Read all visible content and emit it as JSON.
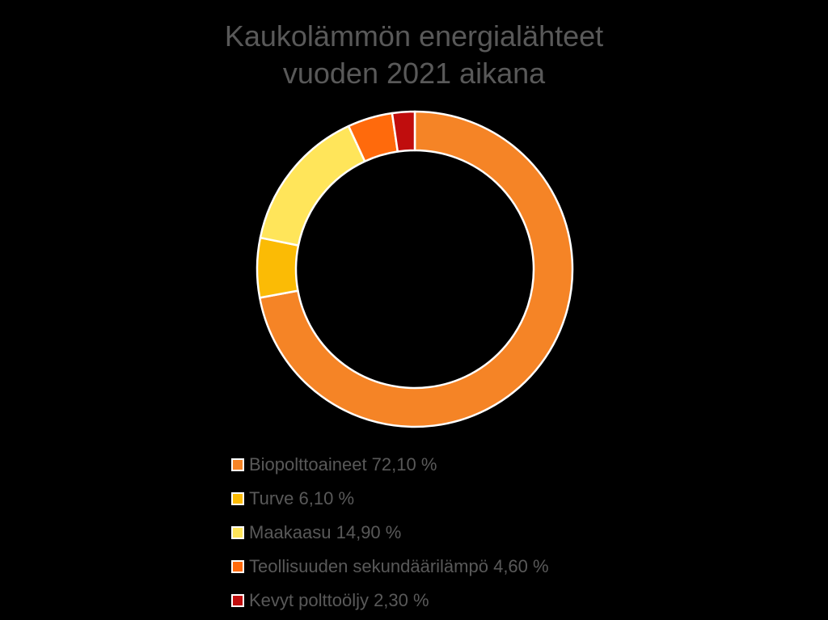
{
  "title": {
    "line1": "Kaukolämmön energialähteet",
    "line2": "vuoden 2021 aikana"
  },
  "legend": [
    {
      "label": "Biopolttoaineet 72,10 %",
      "color": "#F58426"
    },
    {
      "label": "Turve 6,10 %",
      "color": "#FBBB05"
    },
    {
      "label": "Maakaasu 14,90 %",
      "color": "#FFE55A"
    },
    {
      "label": "Teollisuuden sekundäärilämpö 4,60 %",
      "color": "#FF6A0C"
    },
    {
      "label": "Kevyt polttoöljy 2,30 %",
      "color": "#C00D0D"
    }
  ],
  "chart_data": {
    "type": "pie",
    "variant": "doughnut",
    "title": "Kaukolämmön energialähteet vuoden 2021 aikana",
    "categories": [
      "Biopolttoaineet",
      "Turve",
      "Maakaasu",
      "Teollisuuden sekundäärilämpö",
      "Kevyt polttoöljy"
    ],
    "values": [
      72.1,
      6.1,
      14.9,
      4.6,
      2.3
    ],
    "unit": "%",
    "colors": [
      "#F58426",
      "#FBBB05",
      "#FFE55A",
      "#FF6A0C",
      "#C00D0D"
    ],
    "start_angle_deg": 0,
    "direction": "clockwise",
    "legend_position": "bottom"
  }
}
